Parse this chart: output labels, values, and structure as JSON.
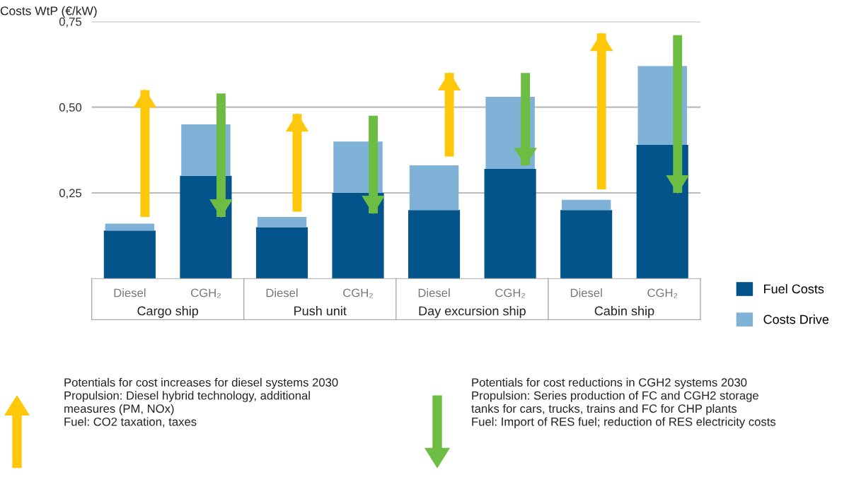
{
  "chart_data": {
    "type": "bar",
    "ylabel": "Costs WtP (€/kW)",
    "categories": [
      "Diesel",
      "CGH₂",
      "Diesel",
      "CGH₂",
      "Diesel",
      "CGH₂",
      "Diesel",
      "CGH₂"
    ],
    "series": [
      {
        "name": "Fuel Costs",
        "color": "#02548b",
        "values": [
          0.14,
          0.3,
          0.15,
          0.25,
          0.2,
          0.32,
          0.2,
          0.39
        ]
      },
      {
        "name": "Costs Drive",
        "color": "#7fb2d6",
        "base": [
          0.14,
          0.3,
          0.15,
          0.25,
          0.2,
          0.32,
          0.2,
          0.39
        ],
        "values": [
          0.02,
          0.15,
          0.03,
          0.15,
          0.13,
          0.21,
          0.03,
          0.23
        ]
      },
      {
        "type": "bar",
        "marker": "triangle",
        "color": "#fec70a",
        "base": [
          0.18,
          null,
          0.195,
          null,
          0.356,
          null,
          0.26,
          null
        ],
        "values": [
          0.37,
          null,
          0.285,
          null,
          0.244,
          null,
          0.455,
          null
        ]
      },
      {
        "type": "bar",
        "marker": "triangle",
        "color": "#6dbd45",
        "base": [
          null,
          0.54,
          null,
          0.475,
          null,
          0.6,
          null,
          0.71
        ],
        "values": [
          null,
          -0.36,
          null,
          -0.285,
          null,
          -0.27,
          null,
          -0.46
        ]
      }
    ],
    "ylim": [
      0,
      0.75
    ],
    "yticks": [
      {
        "value": 0.25,
        "label": "0,25"
      },
      {
        "value": 0.5,
        "label": "0,50"
      },
      {
        "value": 0.75,
        "label": "0,75"
      }
    ],
    "grid": "y",
    "legend": "right",
    "annotations": [
      "Cargo ship",
      "Push unit",
      "Day excursion ship",
      "Cabin ship",
      "Potentials for cost increases for diesel systems 2030\nPropulsion: Diesel hybrid technology, additional\nmeasures (PM, NOx)\nFuel: CO2 taxation, taxes",
      "Potentials for cost reductions in CGH2 systems 2030\nPropulsion: Series production of FC and CGH2 storage\ntanks for cars, trucks, trains and FC for CHP plants\nFuel: Import of RES fuel; reduction of RES electricity costs"
    ]
  }
}
